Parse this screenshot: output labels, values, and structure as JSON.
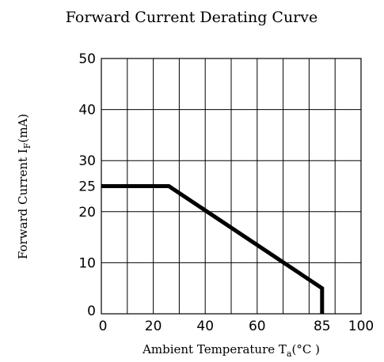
{
  "chart_data": {
    "type": "line",
    "title": "Forward Current Derating Curve",
    "xlabel": {
      "prefix": "Ambient Temperature T",
      "subscript": "a",
      "suffix": "(°C )"
    },
    "ylabel": {
      "prefix": "Forward Current    I",
      "subscript": "F",
      "suffix": "(mA)"
    },
    "xlim": [
      0,
      100
    ],
    "ylim": [
      0,
      50
    ],
    "x_ticks": [
      {
        "value": 0,
        "label": "0"
      },
      {
        "value": 20,
        "label": "20"
      },
      {
        "value": 40,
        "label": "40"
      },
      {
        "value": 60,
        "label": "60"
      },
      {
        "value": 85,
        "label": "85"
      },
      {
        "value": 100,
        "label": "100"
      }
    ],
    "y_ticks": [
      {
        "value": 0,
        "label": "0"
      },
      {
        "value": 10,
        "label": "10"
      },
      {
        "value": 20,
        "label": "20"
      },
      {
        "value": 25,
        "label": "25"
      },
      {
        "value": 30,
        "label": "30"
      },
      {
        "value": 40,
        "label": "40"
      },
      {
        "value": 50,
        "label": "50"
      }
    ],
    "grid_x": [
      0,
      10,
      20,
      30,
      40,
      50,
      60,
      70,
      80,
      90,
      100
    ],
    "grid_y": [
      0,
      10,
      20,
      30,
      40,
      50
    ],
    "grid": true,
    "series": [
      {
        "x": [
          0,
          26,
          85,
          85
        ],
        "y": [
          25,
          25,
          5,
          0
        ]
      }
    ],
    "colors": {
      "line": "#000000",
      "grid": "#000000",
      "text": "#000000"
    }
  }
}
